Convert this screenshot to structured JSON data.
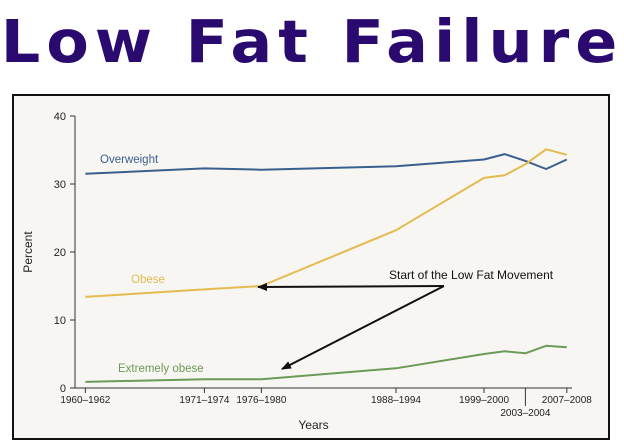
{
  "banner": {
    "title": "Low Fat Failure"
  },
  "chart_data": {
    "type": "line",
    "xlabel": "Years",
    "ylabel": "Percent",
    "ylim": [
      0,
      40
    ],
    "yticks": [
      0,
      10,
      20,
      30,
      40
    ],
    "x_ticks": [
      {
        "label": "1960–1962",
        "pos": 1961,
        "row": 0
      },
      {
        "label": "1971–1974",
        "pos": 1972.5,
        "row": 0
      },
      {
        "label": "1976–1980",
        "pos": 1978,
        "row": 0
      },
      {
        "label": "1988–1994",
        "pos": 1991,
        "row": 0
      },
      {
        "label": "1999–2000",
        "pos": 1999.5,
        "row": 0
      },
      {
        "label": "2003–2004",
        "pos": 2003.5,
        "row": 1
      },
      {
        "label": "2007–2008",
        "pos": 2007.5,
        "row": 0
      }
    ],
    "xlim": [
      1960,
      2008
    ],
    "series": [
      {
        "name": "Overweight",
        "color": "#3a5f8f",
        "points": [
          [
            1961,
            31.5
          ],
          [
            1972.5,
            32.3
          ],
          [
            1978,
            32.1
          ],
          [
            1991,
            32.6
          ],
          [
            1999.5,
            33.6
          ],
          [
            2001.5,
            34.4
          ],
          [
            2003.5,
            33.4
          ],
          [
            2005.5,
            32.2
          ],
          [
            2007.5,
            33.6
          ]
        ]
      },
      {
        "name": "Obese",
        "color": "#e3bb4f",
        "points": [
          [
            1961,
            13.4
          ],
          [
            1972.5,
            14.5
          ],
          [
            1978,
            15.0
          ],
          [
            1991,
            23.2
          ],
          [
            1999.5,
            30.9
          ],
          [
            2001.5,
            31.3
          ],
          [
            2003.5,
            32.9
          ],
          [
            2005.5,
            35.1
          ],
          [
            2007.5,
            34.3
          ]
        ]
      },
      {
        "name": "Extremely obese",
        "color": "#6c9a58",
        "points": [
          [
            1961,
            0.9
          ],
          [
            1972.5,
            1.3
          ],
          [
            1978,
            1.3
          ],
          [
            1991,
            2.9
          ],
          [
            1999.5,
            5.0
          ],
          [
            2001.5,
            5.4
          ],
          [
            2003.5,
            5.1
          ],
          [
            2005.5,
            6.2
          ],
          [
            2007.5,
            6.0
          ]
        ]
      }
    ],
    "annotation": {
      "text": "Start of the Low Fat Movement",
      "targets": [
        [
          1978,
          15.0
        ],
        [
          1978,
          2.9
        ]
      ]
    }
  }
}
